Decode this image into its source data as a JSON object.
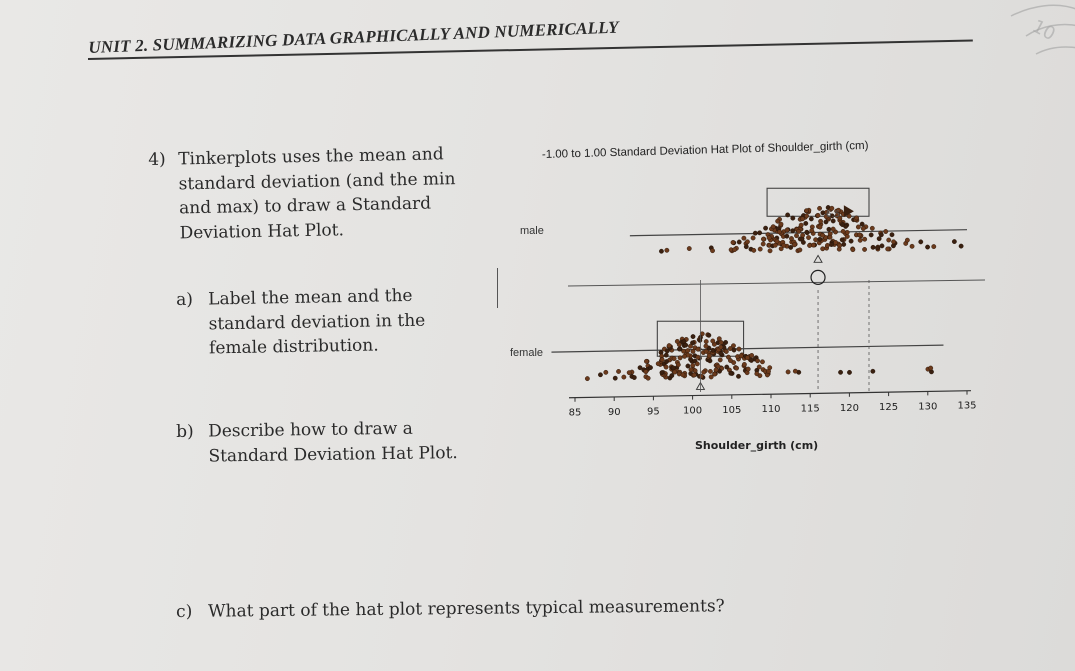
{
  "header": {
    "unit_title": "UNIT 2. SUMMARIZING DATA GRAPHICALLY AND NUMERICALLY"
  },
  "corner_handwriting": "(unreadable)",
  "question4": {
    "number": "4)",
    "text": "Tinkerplots uses the mean and standard deviation (and the min and max) to draw a Standard Deviation Hat Plot."
  },
  "part_a": {
    "label": "a)",
    "text": "Label the mean and the standard deviation in the female distribution."
  },
  "part_b": {
    "label": "b)",
    "text": "Describe how to draw a Standard Deviation Hat Plot."
  },
  "part_c": {
    "label": "c)",
    "text": "What part of the hat plot represents typical measurements?"
  },
  "chart_data": {
    "type": "scatter",
    "title": "-1.00 to 1.00 Standard Deviation Hat Plot of Shoulder_girth (cm)",
    "xlabel": "Shoulder_girth (cm)",
    "ylabel": "",
    "xlim": [
      85,
      135
    ],
    "x_ticks": [
      "85",
      "90",
      "95",
      "100",
      "105",
      "110",
      "115",
      "120",
      "125",
      "130",
      "135"
    ],
    "groups": [
      "male",
      "female"
    ],
    "hat_annotation": "6.5",
    "male": {
      "min": 96,
      "max": 135,
      "mean": 116,
      "sd": 6.5,
      "brim_from": 96,
      "brim_to": 135
    },
    "female": {
      "min": 86,
      "max": 132,
      "mean": 101,
      "sd": 5.5,
      "brim_from": 86,
      "brim_to": 132
    },
    "colors": {
      "dots": "#6b3a1c",
      "dots_dark": "#3a2010",
      "axis": "#333333",
      "hat": "#444444"
    }
  }
}
